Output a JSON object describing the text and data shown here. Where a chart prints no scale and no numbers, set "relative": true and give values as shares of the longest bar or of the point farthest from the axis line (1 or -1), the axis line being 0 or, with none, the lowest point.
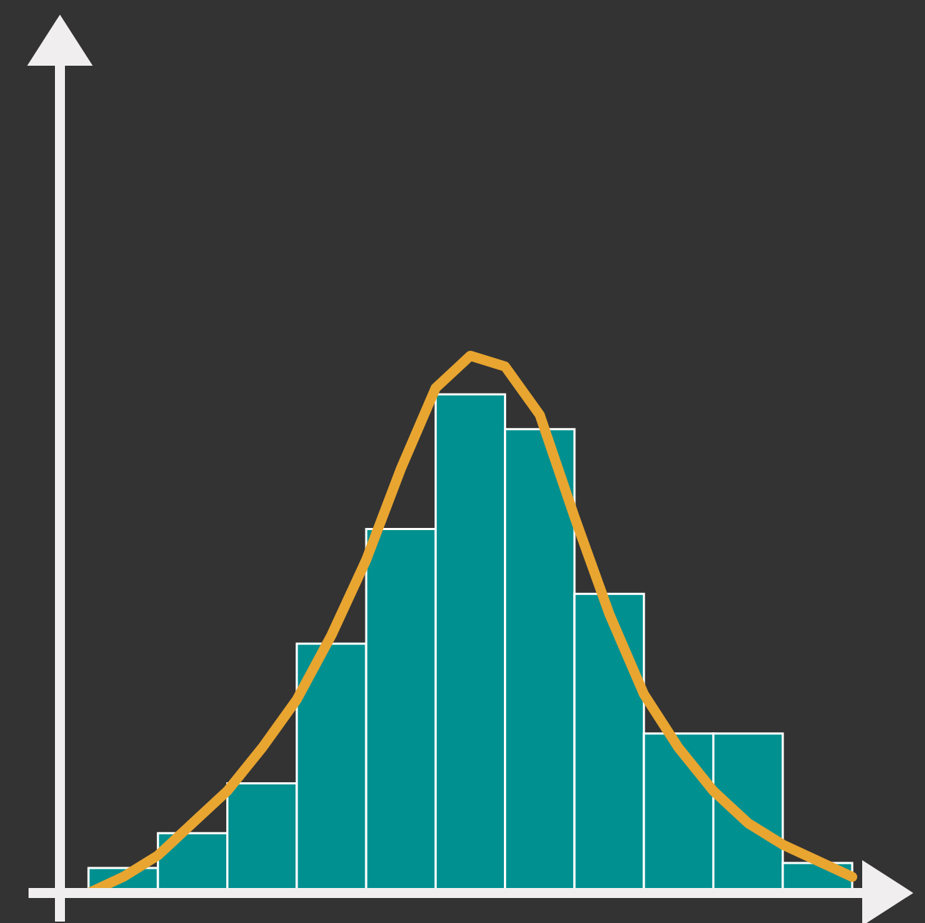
{
  "chart_data": [
    {
      "type": "bar",
      "relative": true,
      "categories": [
        null,
        null,
        null,
        null,
        null,
        null,
        null,
        null,
        null,
        null,
        null
      ],
      "series": [
        {
          "color": "#009090",
          "values": [
            0.05,
            0.12,
            0.22,
            0.5,
            0.73,
            1.0,
            0.93,
            0.6,
            0.32,
            0.32,
            0.06
          ]
        }
      ]
    },
    {
      "type": "line",
      "relative": true,
      "categories": [
        null,
        null,
        null,
        null,
        null,
        null,
        null,
        null,
        null,
        null,
        null,
        null,
        null,
        null,
        null,
        null,
        null,
        null,
        null,
        null,
        null,
        null,
        null
      ],
      "series": [
        {
          "color": "#e8a530",
          "values": [
            0,
            0.03,
            0.07,
            0.13,
            0.19,
            0.27,
            0.36,
            0.48,
            0.62,
            0.79,
            0.94,
            1.0,
            0.98,
            0.89,
            0.7,
            0.52,
            0.37,
            0.27,
            0.19,
            0.13,
            0.09,
            0.06,
            0.03
          ]
        }
      ]
    }
  ]
}
